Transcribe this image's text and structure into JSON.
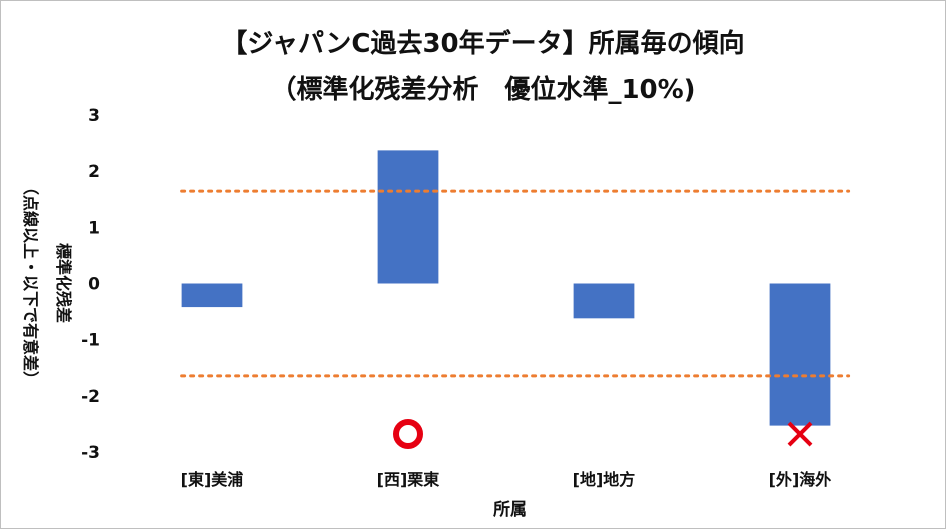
{
  "chart_data": {
    "type": "bar",
    "title": "【ジャパンC過去30年データ】所属毎の傾向",
    "subtitle": "（標準化残差分析　優位水準_10%)",
    "xlabel": "所属",
    "ylabel": "標準化残差",
    "ylabel_note": "（点線以上・以下で有意差）",
    "categories": [
      "[東]美浦",
      "[西]栗東",
      "[地]地方",
      "[外]海外"
    ],
    "values": [
      -0.42,
      2.37,
      -0.62,
      -2.53
    ],
    "ylim": [
      -3,
      3
    ],
    "yticks": [
      3,
      2,
      1,
      0,
      -1,
      -2,
      -3
    ],
    "threshold_lines": [
      1.645,
      -1.645
    ],
    "markers": [
      {
        "category": "[西]栗東",
        "symbol": "circle",
        "y": -2.68
      },
      {
        "category": "[外]海外",
        "symbol": "cross",
        "y": -2.68
      }
    ],
    "grid": false,
    "colors": {
      "bar": "#4472c4",
      "threshold": "#ed7d31",
      "circle": "#e60012",
      "cross": "#e60012"
    }
  }
}
